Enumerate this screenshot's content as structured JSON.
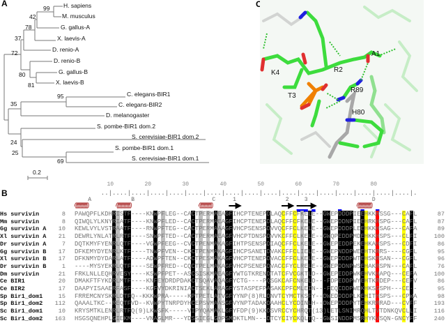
{
  "panel_labels": {
    "a": "A",
    "b": "B",
    "c": "C"
  },
  "tree": {
    "leaves": [
      "H. sapiens",
      "M. musculus",
      "G. gallus-A",
      "X. laevis-A",
      "D. renio-A",
      "D. renio-B",
      "G. gallus-B",
      "X. laevis-B",
      "C. elegans-BIR1",
      "C. elegans-BIR2",
      "D. melanogaster",
      "S. pombe-BIR1 dom.2",
      "S. cerevisiae-BIR1 dom.2",
      "S. pombe-BIR1 dom.1",
      "S. cerevisiae-BIR1 dom.1"
    ],
    "bootstrap": [
      "99",
      "42",
      "78",
      "37",
      "72",
      "80",
      "81",
      "95",
      "35",
      "24",
      "25",
      "69"
    ],
    "scale_label": "0.2"
  },
  "alignment": {
    "ruler_numbers": [
      10,
      20,
      30,
      40,
      50,
      60,
      70,
      80
    ],
    "ruler_dots": "       ..|....|....|....|....|....|....|....|....|....|....|....|....|....|....|....|....|.",
    "helices": [
      {
        "label": "A",
        "from": 1,
        "to": 8
      },
      {
        "label": "B",
        "from": 12,
        "to": 20
      },
      {
        "label": "C",
        "from": 34,
        "to": 41
      },
      {
        "label": "D",
        "from": 76,
        "to": 84
      }
    ],
    "strands": [
      {
        "label": "1",
        "from": 42,
        "to": 44
      },
      {
        "label": "2",
        "from": 56,
        "to": 58
      },
      {
        "label": "3",
        "from": 60,
        "to": 64
      }
    ],
    "blue_marks": [
      [
        60,
        62
      ],
      [
        64,
        64
      ],
      [
        71,
        71
      ],
      [
        77,
        77
      ],
      [
        81,
        81
      ]
    ],
    "colors": {
      "black": "#000000",
      "gray": "#bdbdbd",
      "yellow": "#ffff00",
      "red": "#ff0000",
      "blue": "#0000ff",
      "helix": "#b03a3a"
    },
    "black_columns": [
      11,
      14,
      15,
      22,
      32,
      38,
      41,
      42,
      52,
      63,
      67,
      68,
      71,
      72,
      73,
      74,
      77,
      90
    ],
    "gray_columns": [
      12,
      24,
      34,
      36,
      39,
      61
    ],
    "yellow_columns": [
      56,
      59,
      78,
      88
    ],
    "red_columns": [
      81
    ],
    "rows": [
      {
        "name": "Hs survivin",
        "start": "8",
        "seq": "PAWQPFLKDHRISTF----KNWPFLEG--CACTPERMAEAGFIHCPTENEPDLAQCFFCFKELE--GWEPDDDPIEEHKKHSSG---CAFL",
        "end": "87"
      },
      {
        "name": "Mm survivin",
        "start": "8",
        "seq": "QIWQLYLKNYRIATF----KNWPFLED--CACTPERMAEAGFIHCPTENEPDLAQCFFCFKELE--GWEPDDNPIEEHRKHSPG---CAFL",
        "end": "87"
      },
      {
        "name": "Gg survivin A",
        "start": "10",
        "seq": "KEWLVYLVSTRAATF----RNWPFTEG--CACTPERMAAAGFVHCPSENSPDVVQCFFCLKELE--GWEPDDDPLEEHKKHSAG---CAFA",
        "end": "89"
      },
      {
        "name": "Xl survivin A",
        "start": "21",
        "seq": "DEWRLYNLATRLRTF----SNWPFTED--CACTPERMAEAGFVHCPTDNSPDVVKCFFCLKELE--GWQPEDDPMDEHKKHSPS---CLFI",
        "end": "100"
      },
      {
        "name": "Dr survivin A",
        "start": "7",
        "seq": "DQTKMYFYENRLQTF----VGWPFEEG--CVCTPENMAKAGFIHTPSENSPDIAQCFFCLKELE--GWEPEDDPEKEHKAHSPS---CDFI",
        "end": "86"
      },
      {
        "name": "Gg survivin B",
        "start": "17",
        "seq": "DFKEMYDYENRLKTF----TNWPFVEN--CKCTPENMAKAGFIHCPSANETDVAKCFFCLIELE--GWEPNDDPWEEHTKRRS----CGFL",
        "end": "95"
      },
      {
        "name": "Xl survivin B",
        "start": "17",
        "seq": "DFKNMYDYDARLATF----ADWPFTEN--CKCTPESMAKAGFVHCPTENEPDVACCFFCLKELE--GWEPDDDPWTEHSKRSAN---CGFL",
        "end": "96"
      },
      {
        "name": "Dr survivin B",
        "start": "1",
        "seq": "----MYSYEKRLQTF----SEWPFRED--CQCTPELMAKAGFVHCPSENEPDVACCFYCLRELE--GWEPDDNPWSEHAKRSPN---CAFL",
        "end": "76"
      },
      {
        "name": "Dm survivin",
        "start": "21",
        "seq": "FRKLNLLEQHRVESY----KSWPFPET--ASCSISKMAEAGFYWTGTKRENDTATCFVCGKTLD--GWEPEDDPWKEHVKHAPQ---CEFA",
        "end": "100"
      },
      {
        "name": "Ce BIR1",
        "start": "20",
        "seq": "DMAKFTFYKDRLMTF----KNFEYDRDPDAKCTSQAVAQAGFYCTG----PQSGKCAFCNKELD---FDPEDDPWYEHTKRDEP---CEFV",
        "end": "86"
      },
      {
        "name": "Ce BIR2",
        "start": "17",
        "seq": "DAAPYISAAERFASF----KGFVYDKRINIACTSEKLARAGFYSTASPEFPASAKCPFCMLEIN---FEQCDDPWEKHKSGSPH---CE--",
        "end": "95"
      },
      {
        "name": "Sp Bir1_dom1",
        "start": "15",
        "seq": "FRREMCNYSKRLDTFQ--KKKWPRA-----KPTPETLATVGFYYNP(8)RLDNVTCYMCTKSFY--DWEDDDDPLKEHITHSPS---CPWA",
        "end": "98"
      },
      {
        "name": "Sp Bir1_dom2",
        "start": "112",
        "seq": "QAAALTKC--REQTFVD--KVWPYTNRPDYHCEPSVMAASGFVYNPTADAKDAAHCLYCDINLH--DWEPDDDPYTEHKRRRAD---CVFF",
        "end": "193"
      },
      {
        "name": "Sc Bir1_dom1",
        "start": "10",
        "seq": "KRYSMTKLENRLRTFQ(9)LKWSFK-----VIPYQAMAKLGFYFDP(9)KKDSVRCCYCHRQT(13)LETLSNIMRQHLTVTDNKQVCLLI",
        "end": "116"
      },
      {
        "name": "Sc Bir1_dom2",
        "start": "163",
        "seq": "HSGSQNEHPLGIEKM----VNAGLMR---YDSSIEGLGDPSMDKTLMN---DTCYCIYCKQLTQ--GWSINDDPMSRHYKVSQN-GNCYFF",
        "end": "240"
      }
    ]
  },
  "structure": {
    "residue_labels": [
      "A1",
      "R2",
      "T3",
      "K4",
      "R89",
      "H80"
    ],
    "colors": {
      "peptide": "#3ddc3d",
      "protein": "#90e090",
      "reference": "#a8a8a8",
      "nitrogen": "#2020e0",
      "oxygen": "#e03030",
      "phosphorus": "#f08000",
      "hbond": "#30c030"
    }
  }
}
